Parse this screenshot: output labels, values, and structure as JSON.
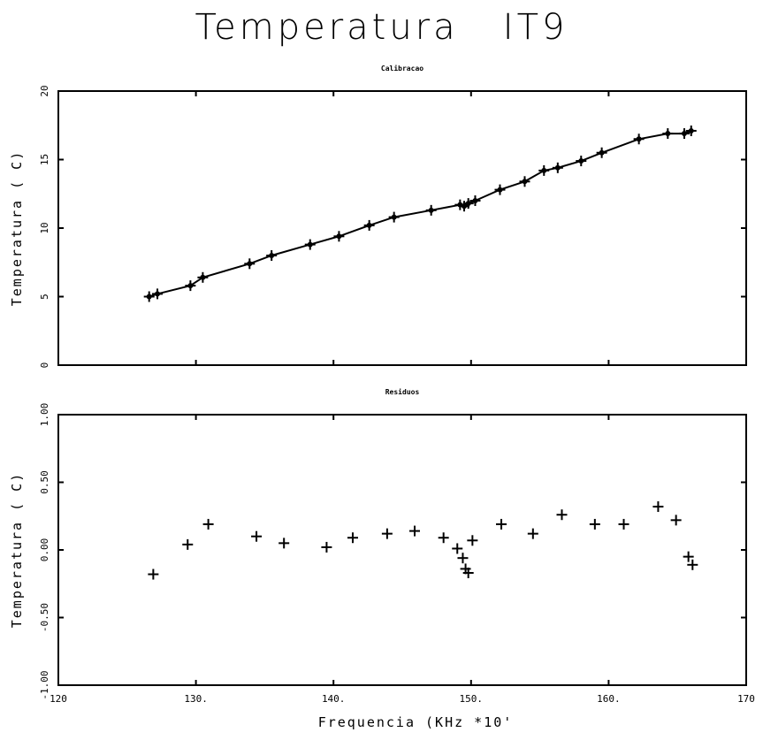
{
  "title": "Temperatura   IT9",
  "xlabel": "Frequencia  (KHz  *10'",
  "chart_data": [
    {
      "type": "line",
      "title": "Calibracao",
      "ylabel": "Temperatura  ( C)",
      "xlim": [
        120,
        170
      ],
      "ylim": [
        0,
        20
      ],
      "x_ticks": [
        120,
        130,
        140,
        150,
        160,
        170
      ],
      "x_tick_labels": [
        "120",
        "130.",
        "140.",
        "150.",
        "160.",
        "170"
      ],
      "y_ticks": [
        0,
        5,
        10,
        15,
        20
      ],
      "y_tick_labels": [
        "0",
        "5",
        "10",
        "15",
        "20"
      ],
      "series": [
        {
          "marker": "+",
          "x": [
            126.6,
            127.2,
            129.6,
            130.5,
            133.9,
            135.5,
            138.3,
            140.4,
            142.6,
            144.4,
            147.1,
            149.2,
            149.5,
            149.8,
            150.3,
            152.1,
            153.9,
            155.3,
            156.3,
            158.0,
            159.5,
            162.2,
            164.3,
            165.5,
            166.0
          ],
          "y": [
            5.0,
            5.2,
            5.8,
            6.4,
            7.4,
            8.0,
            8.8,
            9.4,
            10.2,
            10.8,
            11.3,
            11.7,
            11.6,
            11.8,
            12.0,
            12.8,
            13.4,
            14.2,
            14.4,
            14.9,
            15.5,
            16.5,
            16.9,
            16.9,
            17.1
          ]
        }
      ]
    },
    {
      "type": "scatter",
      "title": "Residuos",
      "ylabel": "Temperatura  ( C)",
      "xlim": [
        120,
        170
      ],
      "ylim": [
        -1.0,
        1.0
      ],
      "x_ticks": [
        120,
        130,
        140,
        150,
        160,
        170
      ],
      "x_tick_labels": [
        "120",
        "130.",
        "140.",
        "150.",
        "160.",
        "170"
      ],
      "y_ticks": [
        -1.0,
        -0.5,
        0.0,
        0.5,
        1.0
      ],
      "y_tick_labels": [
        "-1.00",
        "-0.50",
        "0.00",
        "0.50",
        "1.00"
      ],
      "series": [
        {
          "marker": "+",
          "x": [
            126.9,
            129.4,
            130.9,
            134.4,
            136.4,
            139.5,
            141.4,
            143.9,
            145.9,
            148.0,
            149.0,
            149.4,
            149.6,
            149.8,
            150.1,
            152.2,
            154.5,
            156.6,
            159.0,
            161.1,
            163.6,
            164.9,
            165.8,
            166.1
          ],
          "y": [
            -0.18,
            0.04,
            0.19,
            0.1,
            0.05,
            0.02,
            0.09,
            0.12,
            0.14,
            0.09,
            0.01,
            -0.06,
            -0.14,
            -0.17,
            0.07,
            0.19,
            0.12,
            0.26,
            0.19,
            0.19,
            0.32,
            0.22,
            -0.05,
            -0.11
          ]
        }
      ]
    }
  ]
}
